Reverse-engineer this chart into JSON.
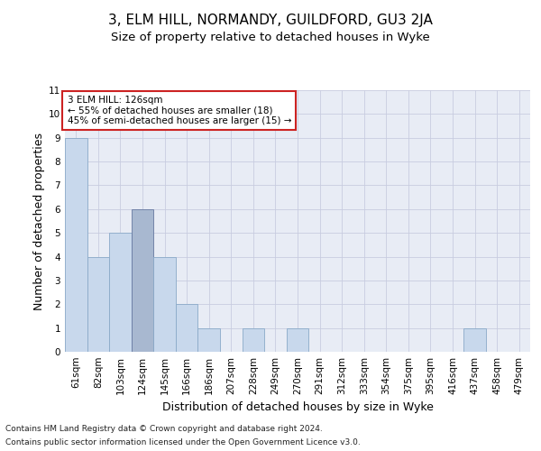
{
  "title": "3, ELM HILL, NORMANDY, GUILDFORD, GU3 2JA",
  "subtitle": "Size of property relative to detached houses in Wyke",
  "xlabel": "Distribution of detached houses by size in Wyke",
  "ylabel": "Number of detached properties",
  "footnote1": "Contains HM Land Registry data © Crown copyright and database right 2024.",
  "footnote2": "Contains public sector information licensed under the Open Government Licence v3.0.",
  "categories": [
    "61sqm",
    "82sqm",
    "103sqm",
    "124sqm",
    "145sqm",
    "166sqm",
    "186sqm",
    "207sqm",
    "228sqm",
    "249sqm",
    "270sqm",
    "291sqm",
    "312sqm",
    "333sqm",
    "354sqm",
    "375sqm",
    "395sqm",
    "416sqm",
    "437sqm",
    "458sqm",
    "479sqm"
  ],
  "values": [
    9,
    4,
    5,
    6,
    4,
    2,
    1,
    0,
    1,
    0,
    1,
    0,
    0,
    0,
    0,
    0,
    0,
    0,
    1,
    0,
    0
  ],
  "highlight_index": 3,
  "bar_color": "#c8d8ec",
  "bar_edge_color": "#8aaac8",
  "highlight_color": "#a8b8d0",
  "highlight_edge_color": "#6678a0",
  "annotation_title": "3 ELM HILL: 126sqm",
  "annotation_line1": "← 55% of detached houses are smaller (18)",
  "annotation_line2": "45% of semi-detached houses are larger (15) →",
  "annotation_box_facecolor": "#ffffff",
  "annotation_box_edgecolor": "#cc2222",
  "ylim": [
    0,
    11
  ],
  "yticks": [
    0,
    1,
    2,
    3,
    4,
    5,
    6,
    7,
    8,
    9,
    10,
    11
  ],
  "grid_color": "#c8cce0",
  "bg_color": "#e8ecf5",
  "title_fontsize": 11,
  "subtitle_fontsize": 9.5,
  "xlabel_fontsize": 9,
  "ylabel_fontsize": 9,
  "tick_fontsize": 7.5,
  "annotation_fontsize": 7.5,
  "footnote_fontsize": 6.5
}
